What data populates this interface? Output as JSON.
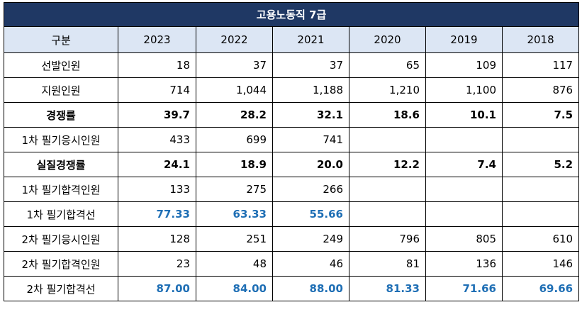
{
  "title": "고용노동직 7급",
  "header": {
    "label": "구분",
    "years": [
      "2023",
      "2022",
      "2021",
      "2020",
      "2019",
      "2018"
    ]
  },
  "rows": [
    {
      "label": "선발인원",
      "style": "normal",
      "values": [
        "18",
        "37",
        "37",
        "65",
        "109",
        "117"
      ]
    },
    {
      "label": "지원인원",
      "style": "normal",
      "values": [
        "714",
        "1,044",
        "1,188",
        "1,210",
        "1,100",
        "876"
      ]
    },
    {
      "label": "경쟁률",
      "style": "bold",
      "values": [
        "39.7",
        "28.2",
        "32.1",
        "18.6",
        "10.1",
        "7.5"
      ]
    },
    {
      "label": "1차 필기응시인원",
      "style": "normal",
      "values": [
        "433",
        "699",
        "741",
        "",
        "",
        ""
      ]
    },
    {
      "label": "실질경쟁률",
      "style": "bold",
      "values": [
        "24.1",
        "18.9",
        "20.0",
        "12.2",
        "7.4",
        "5.2"
      ]
    },
    {
      "label": "1차 필기합격인원",
      "style": "normal",
      "values": [
        "133",
        "275",
        "266",
        "",
        "",
        ""
      ]
    },
    {
      "label": "1차 필기합격선",
      "style": "blue",
      "values": [
        "77.33",
        "63.33",
        "55.66",
        "",
        "",
        ""
      ]
    },
    {
      "label": "2차 필기응시인원",
      "style": "normal",
      "values": [
        "128",
        "251",
        "249",
        "796",
        "805",
        "610"
      ]
    },
    {
      "label": "2차 필기합격인원",
      "style": "normal",
      "values": [
        "23",
        "48",
        "46",
        "81",
        "136",
        "146"
      ]
    },
    {
      "label": "2차 필기합격선",
      "style": "blue",
      "values": [
        "87.00",
        "84.00",
        "88.00",
        "81.33",
        "71.66",
        "69.66"
      ]
    }
  ]
}
